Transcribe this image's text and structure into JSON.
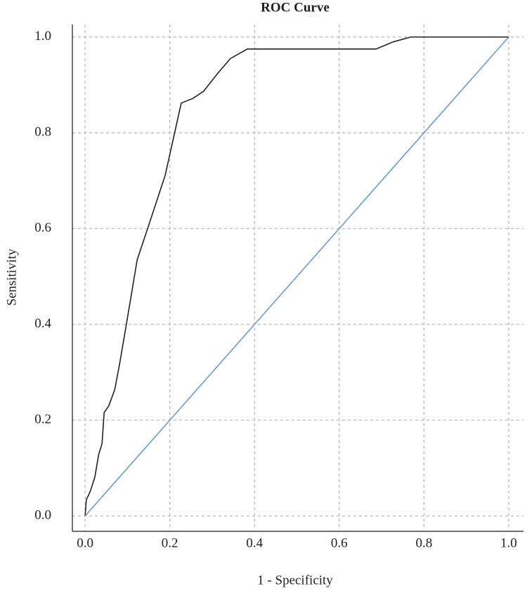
{
  "chart_data": {
    "type": "line",
    "title": "ROC Curve",
    "x_label": "1 - Specificity",
    "y_label": "Sensitivity",
    "xlim": [
      -0.03,
      1.035
    ],
    "ylim": [
      -0.032,
      1.026
    ],
    "xticks": [
      {
        "value": 0,
        "label": "0.0"
      },
      0.2,
      0.4,
      0.6,
      0.8,
      {
        "value": 1,
        "label": "1.0"
      }
    ],
    "yticks": [
      {
        "value": 0,
        "label": "0.0"
      },
      0.2,
      0.4,
      0.6,
      0.8,
      {
        "value": 1,
        "label": "1.0"
      }
    ],
    "grid": true,
    "series": [
      {
        "color": "#222222",
        "x": [
          0,
          0.003,
          0.012,
          0.023,
          0.032,
          0.04,
          0.045,
          0.056,
          0.07,
          0.081,
          0.098,
          0.123,
          0.148,
          0.189,
          0.227,
          0.255,
          0.28,
          0.313,
          0.343,
          0.383,
          0.687,
          0.728,
          0.769,
          1
        ],
        "values": [
          0,
          0.034,
          0.051,
          0.081,
          0.128,
          0.151,
          0.216,
          0.23,
          0.264,
          0.315,
          0.403,
          0.535,
          0.601,
          0.711,
          0.862,
          0.872,
          0.887,
          0.924,
          0.955,
          0.975,
          0.975,
          0.99,
          1,
          1
        ]
      },
      {
        "color": "#6a9ccc",
        "x": [
          0,
          1
        ],
        "values": [
          0,
          1
        ]
      }
    ]
  }
}
